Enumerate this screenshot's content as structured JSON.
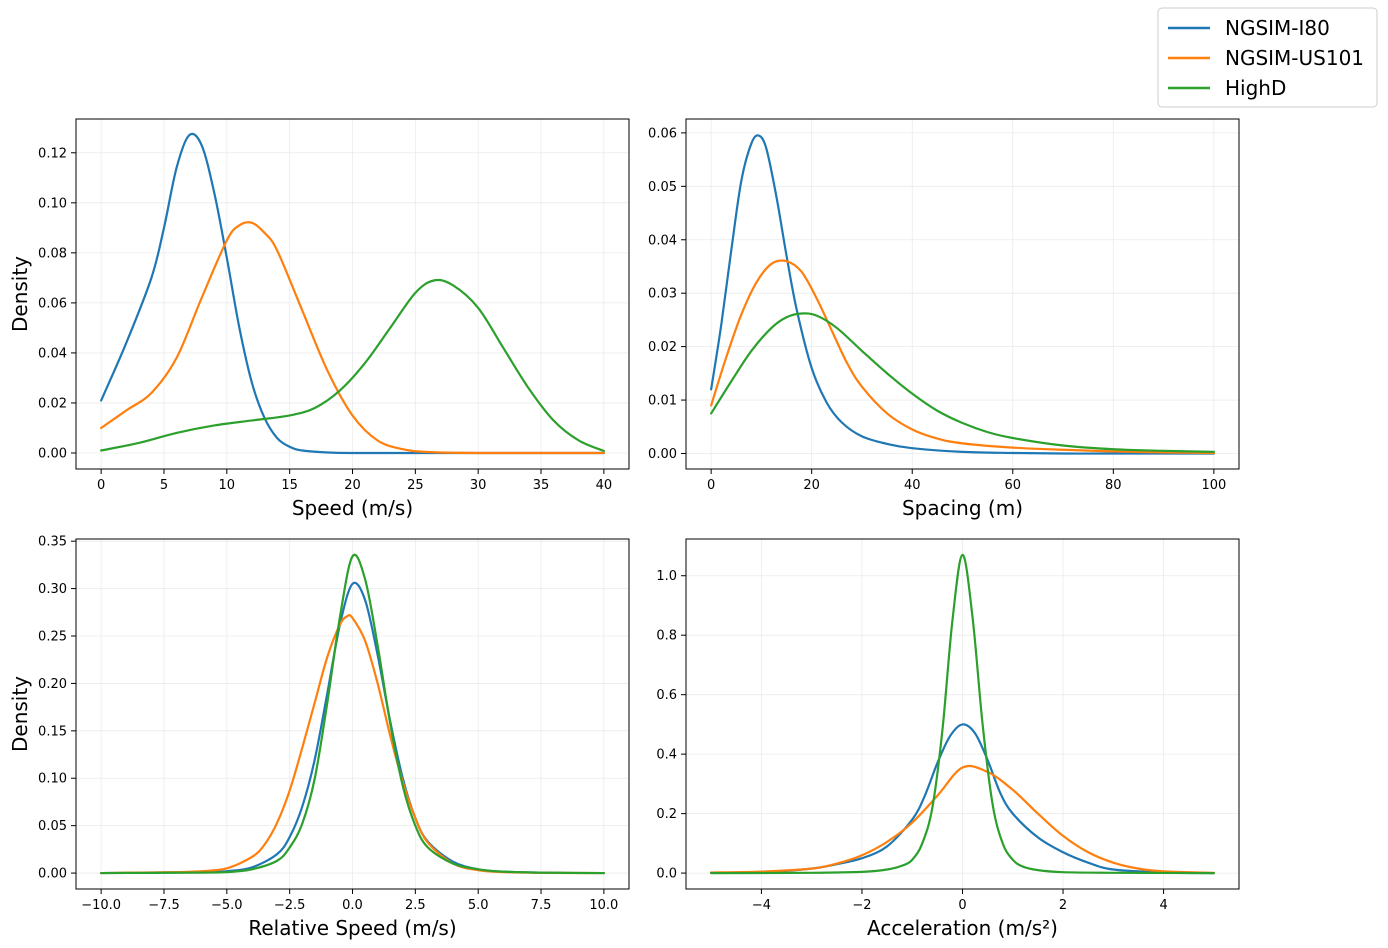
{
  "legend": {
    "location": "top-right",
    "entries": [
      {
        "name": "NGSIM-I80",
        "color": "#1f77b4"
      },
      {
        "name": "NGSIM-US101",
        "color": "#ff7f0e"
      },
      {
        "name": "HighD",
        "color": "#2ca02c"
      }
    ]
  },
  "chart_data": [
    {
      "type": "line",
      "title": "",
      "xlabel": "Speed (m/s)",
      "ylabel": "Density",
      "xlim": [
        -2,
        42
      ],
      "ylim": [
        -0.0064,
        0.1335
      ],
      "xticks": [
        0,
        5,
        10,
        15,
        20,
        25,
        30,
        35,
        40
      ],
      "xtick_labels": [
        "0",
        "5",
        "10",
        "15",
        "20",
        "25",
        "30",
        "35",
        "40"
      ],
      "yticks": [
        0,
        0.02,
        0.04,
        0.06,
        0.08,
        0.1,
        0.12
      ],
      "ytick_labels": [
        "0.00",
        "0.02",
        "0.04",
        "0.06",
        "0.08",
        "0.10",
        "0.12"
      ],
      "grid": true,
      "series": [
        {
          "name": "NGSIM-I80",
          "x": [
            0,
            2,
            4,
            5,
            6,
            7,
            8,
            9,
            10,
            11,
            12,
            13,
            14,
            15,
            16,
            18,
            20,
            25,
            30,
            35,
            40
          ],
          "y": [
            0.021,
            0.044,
            0.07,
            0.09,
            0.114,
            0.127,
            0.123,
            0.104,
            0.078,
            0.05,
            0.028,
            0.014,
            0.006,
            0.0025,
            0.001,
            0.0002,
            0,
            0,
            0,
            0,
            0
          ]
        },
        {
          "name": "NGSIM-US101",
          "x": [
            0,
            2,
            4,
            6,
            8,
            10,
            11,
            12,
            13,
            14,
            16,
            18,
            20,
            22,
            24,
            26,
            30,
            35,
            40
          ],
          "y": [
            0.01,
            0.017,
            0.024,
            0.038,
            0.062,
            0.085,
            0.091,
            0.092,
            0.088,
            0.081,
            0.057,
            0.033,
            0.015,
            0.005,
            0.0015,
            0.0004,
            0,
            0,
            0
          ]
        },
        {
          "name": "HighD",
          "x": [
            0,
            3,
            6,
            9,
            12,
            15,
            17,
            19,
            21,
            23,
            25,
            26.5,
            28,
            30,
            32,
            34,
            36,
            38,
            40
          ],
          "y": [
            0.001,
            0.004,
            0.008,
            0.011,
            0.013,
            0.015,
            0.018,
            0.025,
            0.036,
            0.05,
            0.064,
            0.069,
            0.067,
            0.058,
            0.042,
            0.026,
            0.013,
            0.005,
            0.0008
          ]
        }
      ]
    },
    {
      "type": "line",
      "title": "",
      "xlabel": "Spacing (m)",
      "ylabel": "",
      "xlim": [
        -5,
        105
      ],
      "ylim": [
        -0.0029,
        0.0626
      ],
      "xticks": [
        0,
        20,
        40,
        60,
        80,
        100
      ],
      "xtick_labels": [
        "0",
        "20",
        "40",
        "60",
        "80",
        "100"
      ],
      "yticks": [
        0,
        0.01,
        0.02,
        0.03,
        0.04,
        0.05,
        0.06
      ],
      "ytick_labels": [
        "0.00",
        "0.01",
        "0.02",
        "0.03",
        "0.04",
        "0.05",
        "0.06"
      ],
      "grid": true,
      "series": [
        {
          "name": "NGSIM-I80",
          "x": [
            0,
            2,
            4,
            6,
            8,
            9.5,
            11,
            13,
            15,
            17,
            20,
            23,
            26,
            30,
            35,
            40,
            50,
            60,
            70,
            80,
            100
          ],
          "y": [
            0.012,
            0.024,
            0.038,
            0.051,
            0.058,
            0.0595,
            0.057,
            0.048,
            0.037,
            0.027,
            0.016,
            0.0095,
            0.0058,
            0.0032,
            0.0018,
            0.001,
            0.0003,
            0.0001,
            0,
            0,
            0
          ]
        },
        {
          "name": "NGSIM-US101",
          "x": [
            0,
            3,
            6,
            9,
            12,
            15,
            18,
            21,
            24,
            27,
            30,
            35,
            40,
            45,
            50,
            60,
            70,
            80,
            90,
            100
          ],
          "y": [
            0.009,
            0.018,
            0.026,
            0.032,
            0.0355,
            0.036,
            0.034,
            0.029,
            0.023,
            0.017,
            0.0125,
            0.0075,
            0.0045,
            0.0028,
            0.0019,
            0.0011,
            0.0007,
            0.0004,
            0.0002,
            0.0001
          ]
        },
        {
          "name": "HighD",
          "x": [
            0,
            4,
            8,
            12,
            15,
            18,
            21,
            25,
            30,
            35,
            40,
            45,
            50,
            55,
            60,
            70,
            80,
            90,
            100
          ],
          "y": [
            0.0075,
            0.0135,
            0.0192,
            0.0235,
            0.0255,
            0.0262,
            0.0258,
            0.0235,
            0.0192,
            0.015,
            0.0112,
            0.008,
            0.0057,
            0.004,
            0.0029,
            0.0015,
            0.0008,
            0.0005,
            0.0003
          ]
        }
      ]
    },
    {
      "type": "line",
      "title": "",
      "xlabel": "Relative Speed (m/s)",
      "ylabel": "Density",
      "xlim": [
        -11,
        11
      ],
      "ylim": [
        -0.0168,
        0.3523
      ],
      "xticks": [
        -10,
        -7.5,
        -5,
        -2.5,
        0,
        2.5,
        5,
        7.5,
        10
      ],
      "xtick_labels": [
        "−10.0",
        "−7.5",
        "−5.0",
        "−2.5",
        "0.0",
        "2.5",
        "5.0",
        "7.5",
        "10.0"
      ],
      "yticks": [
        0,
        0.05,
        0.1,
        0.15,
        0.2,
        0.25,
        0.3,
        0.35
      ],
      "ytick_labels": [
        "0.00",
        "0.05",
        "0.10",
        "0.15",
        "0.20",
        "0.25",
        "0.30",
        "0.35"
      ],
      "grid": true,
      "series": [
        {
          "name": "NGSIM-I80",
          "x": [
            -10,
            -6,
            -5,
            -4,
            -3,
            -2.5,
            -2,
            -1.5,
            -1,
            -0.5,
            0,
            0.5,
            1,
            1.5,
            2,
            2.5,
            3,
            4,
            5,
            6,
            8,
            10
          ],
          "y": [
            0,
            0.001,
            0.002,
            0.006,
            0.02,
            0.038,
            0.07,
            0.12,
            0.19,
            0.262,
            0.305,
            0.288,
            0.23,
            0.16,
            0.1,
            0.058,
            0.033,
            0.012,
            0.004,
            0.0015,
            0.0003,
            0
          ]
        },
        {
          "name": "NGSIM-US101",
          "x": [
            -10,
            -7,
            -6,
            -5,
            -4,
            -3.5,
            -3,
            -2.5,
            -2,
            -1.5,
            -1,
            -0.5,
            -0.2,
            0,
            0.5,
            1,
            1.5,
            2,
            2.5,
            3,
            4,
            5,
            6,
            8,
            10
          ],
          "y": [
            0,
            0.001,
            0.002,
            0.005,
            0.017,
            0.03,
            0.053,
            0.087,
            0.132,
            0.18,
            0.228,
            0.262,
            0.271,
            0.269,
            0.245,
            0.2,
            0.145,
            0.096,
            0.058,
            0.032,
            0.01,
            0.003,
            0.001,
            0.0002,
            0
          ]
        },
        {
          "name": "HighD",
          "x": [
            -10,
            -6,
            -5,
            -4,
            -3,
            -2.5,
            -2,
            -1.5,
            -1,
            -0.5,
            0,
            0.5,
            1,
            1.5,
            2,
            2.5,
            3,
            4,
            5,
            6,
            8,
            10
          ],
          "y": [
            0,
            0.0005,
            0.001,
            0.004,
            0.013,
            0.027,
            0.052,
            0.1,
            0.18,
            0.27,
            0.334,
            0.31,
            0.24,
            0.158,
            0.092,
            0.05,
            0.027,
            0.01,
            0.004,
            0.0015,
            0.0003,
            0
          ]
        }
      ]
    },
    {
      "type": "line",
      "title": "",
      "xlabel": "Acceleration (m/s²)",
      "ylabel": "",
      "xlim": [
        -5.5,
        5.5
      ],
      "ylim": [
        -0.0535,
        1.1235
      ],
      "xticks": [
        -4,
        -2,
        0,
        2,
        4
      ],
      "xtick_labels": [
        "−4",
        "−2",
        "0",
        "2",
        "4"
      ],
      "yticks": [
        0,
        0.2,
        0.4,
        0.6,
        0.8,
        1.0
      ],
      "ytick_labels": [
        "0.0",
        "0.2",
        "0.4",
        "0.6",
        "0.8",
        "1.0"
      ],
      "grid": true,
      "series": [
        {
          "name": "NGSIM-I80",
          "x": [
            -5,
            -4,
            -3,
            -2.5,
            -2,
            -1.5,
            -1,
            -0.75,
            -0.5,
            -0.25,
            0,
            0.25,
            0.5,
            0.75,
            1,
            1.5,
            2,
            2.5,
            3,
            4,
            5
          ],
          "y": [
            0.001,
            0.003,
            0.015,
            0.03,
            0.05,
            0.09,
            0.18,
            0.26,
            0.37,
            0.46,
            0.5,
            0.47,
            0.38,
            0.27,
            0.2,
            0.12,
            0.07,
            0.035,
            0.012,
            0.002,
            0
          ]
        },
        {
          "name": "NGSIM-US101",
          "x": [
            -5,
            -4,
            -3,
            -2.5,
            -2,
            -1.5,
            -1,
            -0.5,
            0,
            0.5,
            1,
            1.5,
            2,
            2.5,
            3,
            3.5,
            4,
            5
          ],
          "y": [
            0.002,
            0.005,
            0.015,
            0.032,
            0.06,
            0.105,
            0.17,
            0.26,
            0.355,
            0.34,
            0.28,
            0.2,
            0.125,
            0.07,
            0.035,
            0.015,
            0.006,
            0.001
          ]
        },
        {
          "name": "HighD",
          "x": [
            -5,
            -3,
            -2,
            -1.5,
            -1.2,
            -1,
            -0.8,
            -0.6,
            -0.4,
            -0.2,
            0,
            0.2,
            0.4,
            0.6,
            0.8,
            1,
            1.2,
            1.5,
            2,
            3,
            5
          ],
          "y": [
            0,
            0.001,
            0.004,
            0.012,
            0.025,
            0.045,
            0.1,
            0.22,
            0.48,
            0.85,
            1.07,
            0.86,
            0.5,
            0.23,
            0.1,
            0.045,
            0.022,
            0.01,
            0.003,
            0.001,
            0
          ]
        }
      ]
    }
  ]
}
